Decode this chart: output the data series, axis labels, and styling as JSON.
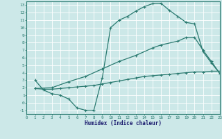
{
  "xlabel": "Humidex (Indice chaleur)",
  "xlim": [
    0,
    23
  ],
  "ylim": [
    -1.5,
    13.5
  ],
  "xticks": [
    0,
    1,
    2,
    3,
    4,
    5,
    6,
    7,
    8,
    9,
    10,
    11,
    12,
    13,
    14,
    15,
    16,
    17,
    18,
    19,
    20,
    21,
    22,
    23
  ],
  "yticks": [
    -1,
    0,
    1,
    2,
    3,
    4,
    5,
    6,
    7,
    8,
    9,
    10,
    11,
    12,
    13
  ],
  "bg_color": "#cce8e8",
  "grid_color": "#ffffff",
  "line_color": "#2a7a70",
  "line1_x": [
    1,
    2,
    3,
    4,
    5,
    6,
    7,
    8,
    9,
    10,
    11,
    12,
    13,
    14,
    15,
    16,
    17,
    18,
    19,
    20,
    21,
    22,
    23
  ],
  "line1_y": [
    3,
    1.7,
    1.2,
    1.0,
    0.5,
    -0.7,
    -1.0,
    -1.0,
    3.3,
    10.0,
    11.0,
    11.5,
    12.2,
    12.8,
    13.2,
    13.25,
    12.3,
    11.5,
    10.7,
    10.5,
    6.8,
    5.3,
    3.9
  ],
  "line2_x": [
    1,
    2,
    3,
    4,
    5,
    6,
    7,
    8,
    9,
    10,
    11,
    12,
    13,
    14,
    15,
    16,
    17,
    18,
    19,
    20,
    21,
    22,
    23
  ],
  "line2_y": [
    1.9,
    1.8,
    1.8,
    1.9,
    2.0,
    2.1,
    2.2,
    2.3,
    2.5,
    2.7,
    2.9,
    3.1,
    3.3,
    3.5,
    3.6,
    3.7,
    3.8,
    3.9,
    4.0,
    4.1,
    4.1,
    4.2,
    4.2
  ],
  "line3_x": [
    1,
    3,
    5,
    7,
    9,
    11,
    13,
    15,
    16,
    18,
    19,
    20,
    21,
    22,
    23
  ],
  "line3_y": [
    1.9,
    2.0,
    2.8,
    3.5,
    4.5,
    5.5,
    6.3,
    7.3,
    7.7,
    8.2,
    8.7,
    8.7,
    7.0,
    5.5,
    3.9
  ]
}
